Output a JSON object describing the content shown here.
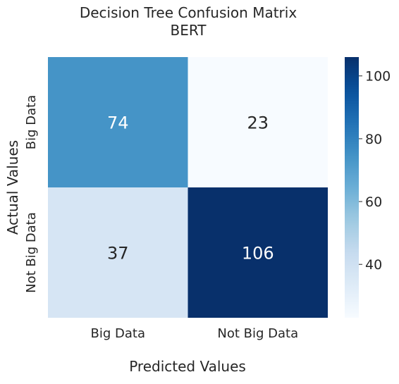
{
  "chart_data": {
    "type": "heatmap",
    "title_lines": [
      "Decision Tree Confusion Matrix",
      "BERT"
    ],
    "xlabel": "Predicted Values",
    "ylabel": "Actual Values",
    "x_categories": [
      "Big Data",
      "Not Big Data"
    ],
    "y_categories": [
      "Big Data",
      "Not Big Data"
    ],
    "values": [
      [
        74,
        23
      ],
      [
        37,
        106
      ]
    ],
    "colormap": "Blues",
    "color_range": [
      23,
      106
    ],
    "colorbar_ticks": [
      40,
      60,
      80,
      100
    ],
    "annotation_colors": {
      "light_cell_text": "#262626",
      "dark_cell_text": "#ffffff"
    }
  }
}
